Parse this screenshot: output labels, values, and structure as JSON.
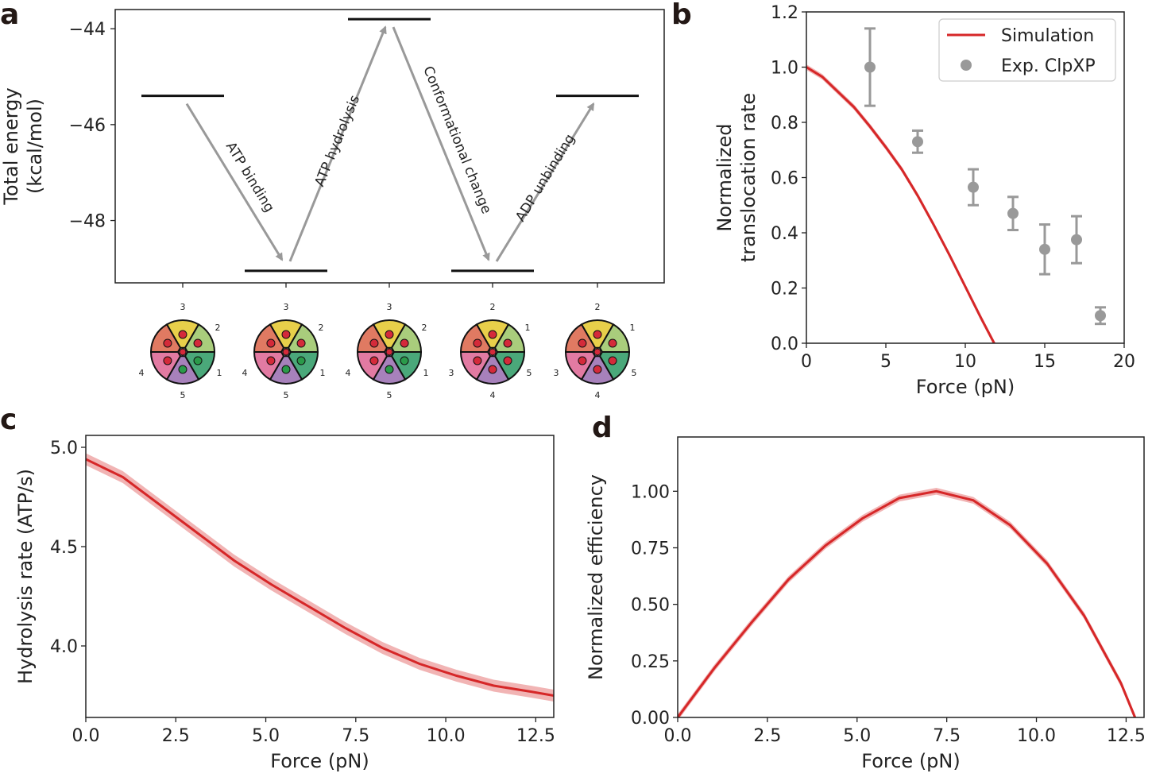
{
  "panels": {
    "a": "a",
    "b": "b",
    "c": "c",
    "d": "d"
  },
  "chart_data": [
    {
      "panel": "a",
      "type": "line",
      "ylabel_line1": "Total energy",
      "ylabel_line2": "(kcal/mol)",
      "ylim": [
        -49.3,
        -43.6
      ],
      "yticks": [
        -44,
        -46,
        -48
      ],
      "ytick_labels": [
        "−44",
        "−46",
        "−48"
      ],
      "levels": [
        -45.4,
        -49.05,
        -43.8,
        -49.05,
        -45.4
      ],
      "transitions": [
        {
          "label": "ATP binding",
          "from": 0,
          "to": 1
        },
        {
          "label": "ATP hydrolysis",
          "from": 1,
          "to": 2
        },
        {
          "label": "Conformational change",
          "from": 2,
          "to": 3
        },
        {
          "label": "ADP unbinding",
          "from": 3,
          "to": 4
        }
      ],
      "hexamer_states": [
        {
          "labels": [
            "3",
            "2",
            "1",
            "5",
            "4"
          ]
        },
        {
          "labels": [
            "3",
            "2",
            "1",
            "5",
            "4"
          ]
        },
        {
          "labels": [
            "3",
            "2",
            "1",
            "5",
            "4"
          ]
        },
        {
          "labels": [
            "2",
            "1",
            "5",
            "4",
            "3"
          ]
        },
        {
          "labels": [
            "2",
            "1",
            "5",
            "4",
            "3"
          ]
        }
      ],
      "subunit_colors": [
        "#e8cf4a",
        "#a9cd7c",
        "#4aa87a",
        "#a781bb",
        "#e27aa2",
        "#e07a62"
      ]
    },
    {
      "panel": "b",
      "type": "line",
      "xlabel": "Force (pN)",
      "ylabel_line1": "Normalized",
      "ylabel_line2": "translocation rate",
      "xlim": [
        0,
        20
      ],
      "ylim": [
        0,
        1.2
      ],
      "xticks": [
        0,
        5,
        10,
        15,
        20
      ],
      "xtick_labels": [
        "0",
        "5",
        "10",
        "15",
        "20"
      ],
      "yticks": [
        0,
        0.2,
        0.4,
        0.6,
        0.8,
        1.0,
        1.2
      ],
      "ytick_labels": [
        "0.0",
        "0.2",
        "0.4",
        "0.6",
        "0.8",
        "1.0",
        "1.2"
      ],
      "legend": {
        "position": "top-right",
        "items": [
          "Simulation",
          "Exp. ClpXP"
        ]
      },
      "series": [
        {
          "name": "Simulation",
          "color": "#d62728",
          "x": [
            0,
            1,
            2,
            3,
            4,
            5,
            6,
            7,
            8,
            9,
            10,
            11,
            12,
            12.7
          ],
          "y": [
            1.0,
            0.965,
            0.91,
            0.855,
            0.785,
            0.71,
            0.63,
            0.535,
            0.43,
            0.32,
            0.205,
            0.09,
            -0.02,
            -0.09
          ]
        },
        {
          "name": "Exp. ClpXP",
          "color": "#999999",
          "x": [
            4,
            7,
            10.5,
            13,
            15,
            17,
            18.5
          ],
          "y": [
            1.0,
            0.73,
            0.565,
            0.47,
            0.34,
            0.375,
            0.1
          ],
          "err": [
            0.14,
            0.04,
            0.065,
            0.06,
            0.09,
            0.085,
            0.03
          ]
        }
      ]
    },
    {
      "panel": "c",
      "type": "line",
      "xlabel": "Force (pN)",
      "ylabel": "Hydrolysis rate (ATP/s)",
      "xlim": [
        0,
        13
      ],
      "ylim": [
        3.64,
        5.06
      ],
      "xticks": [
        0,
        2.5,
        5,
        7.5,
        10,
        12.5
      ],
      "xtick_labels": [
        "0.0",
        "2.5",
        "5.0",
        "7.5",
        "10.0",
        "12.5"
      ],
      "yticks": [
        4.0,
        4.5,
        5.0
      ],
      "ytick_labels": [
        "4.0",
        "4.5",
        "5.0"
      ],
      "series": [
        {
          "color": "#d62728",
          "x": [
            0,
            1.03,
            2.06,
            3.09,
            4.12,
            5.15,
            6.18,
            7.21,
            8.24,
            9.27,
            10.3,
            11.33,
            12.36,
            13
          ],
          "y": [
            4.94,
            4.85,
            4.71,
            4.57,
            4.43,
            4.31,
            4.2,
            4.09,
            3.99,
            3.91,
            3.85,
            3.8,
            3.77,
            3.75
          ],
          "band": 0.03
        }
      ]
    },
    {
      "panel": "d",
      "type": "line",
      "xlabel": "Force (pN)",
      "ylabel": "Normalized efficiency",
      "xlim": [
        0,
        13
      ],
      "ylim": [
        0,
        1.24
      ],
      "xticks": [
        0,
        2.5,
        5,
        7.5,
        10,
        12.5
      ],
      "xtick_labels": [
        "0.0",
        "2.5",
        "5.0",
        "7.5",
        "10.0",
        "12.5"
      ],
      "yticks": [
        0,
        0.25,
        0.5,
        0.75,
        1.0
      ],
      "ytick_labels": [
        "0.00",
        "0.25",
        "0.50",
        "0.75",
        "1.00"
      ],
      "series": [
        {
          "color": "#d62728",
          "x": [
            0,
            1.03,
            2.06,
            3.09,
            4.12,
            5.15,
            6.18,
            7.21,
            8.24,
            9.27,
            10.3,
            11.33,
            12.36,
            12.8
          ],
          "y": [
            0,
            0.22,
            0.42,
            0.61,
            0.76,
            0.88,
            0.97,
            1.0,
            0.96,
            0.85,
            0.68,
            0.45,
            0.15,
            -0.02
          ],
          "band": 0.015
        }
      ]
    }
  ]
}
